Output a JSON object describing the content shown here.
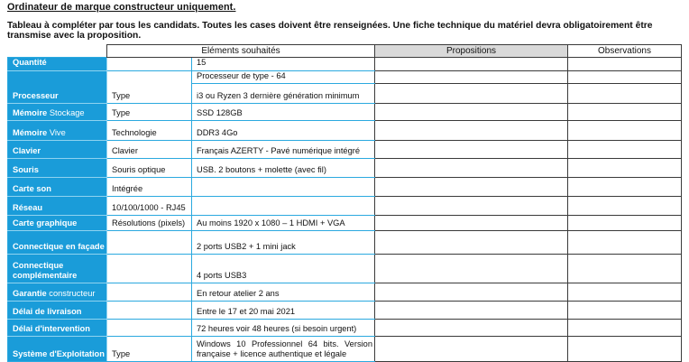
{
  "page": {
    "title": "Ordinateur de marque constructeur uniquement.",
    "intro": "Tableau à compléter par tous les candidats. Toutes les cases doivent être renseignées. Une fiche technique du matériel devra obligatoirement être transmise avec la proposition."
  },
  "colors": {
    "row_label_blue": "#1A9CD9",
    "grid_cyan": "#2BA9DF",
    "grid_dark": "#3A3A3A",
    "header_gray": "#D9D9D9"
  },
  "table": {
    "headers": {
      "elements": "Eléments souhaités",
      "propositions": "Propositions",
      "observations": "Observations"
    },
    "rows": [
      {
        "label": "Quantité",
        "sub": "",
        "cells": [
          {
            "value": "15",
            "proposition": "",
            "observation": ""
          }
        ]
      },
      {
        "label": "Processeur",
        "sub": "Type",
        "cells": [
          {
            "value": "Processeur de type - 64",
            "proposition": "",
            "observation": ""
          },
          {
            "value": "i3 ou Ryzen 3 dernière génération minimum",
            "proposition": "",
            "observation": ""
          }
        ]
      },
      {
        "label": "Mémoire",
        "label_light": "Stockage",
        "sub": "Type",
        "cells": [
          {
            "value": "SSD 128GB",
            "proposition": "",
            "observation": ""
          }
        ]
      },
      {
        "label": "Mémoire",
        "label_light": "Vive",
        "sub": "Technologie",
        "cells": [
          {
            "value": "DDR3 4Go",
            "proposition": "",
            "observation": ""
          }
        ]
      },
      {
        "label": "Clavier",
        "sub": "Clavier",
        "cells": [
          {
            "value": "Français AZERTY - Pavé numérique intégré",
            "proposition": "",
            "observation": ""
          }
        ]
      },
      {
        "label": "Souris",
        "sub": "Souris optique",
        "cells": [
          {
            "value": "USB. 2 boutons + molette (avec fil)",
            "proposition": "",
            "observation": ""
          }
        ]
      },
      {
        "label": "Carte son",
        "sub": "Intégrée",
        "cells": [
          {
            "value": "",
            "proposition": "",
            "observation": ""
          }
        ]
      },
      {
        "label": "Réseau",
        "sub": "10/100/1000 - RJ45",
        "cells": [
          {
            "value": "",
            "proposition": "",
            "observation": ""
          }
        ]
      },
      {
        "label": "Carte graphique",
        "sub": "Résolutions (pixels)",
        "cells": [
          {
            "value": "Au moins 1920 x 1080 – 1 HDMI + VGA",
            "proposition": "",
            "observation": ""
          }
        ]
      },
      {
        "label": "Connectique en façade",
        "sub": "",
        "cells": [
          {
            "value": "2 ports USB2 + 1 mini jack",
            "proposition": "",
            "observation": ""
          }
        ]
      },
      {
        "label": "Connectique complémentaire",
        "sub": "",
        "cells": [
          {
            "value": "4 ports USB3",
            "proposition": "",
            "observation": ""
          }
        ]
      },
      {
        "label": "Garantie",
        "label_light": "constructeur",
        "sub": "",
        "cells": [
          {
            "value": "En retour atelier 2 ans",
            "proposition": "",
            "observation": ""
          }
        ]
      },
      {
        "label": "Délai de livraison",
        "sub": "",
        "cells": [
          {
            "value": "Entre le 17 et 20 mai 2021",
            "proposition": "",
            "observation": ""
          }
        ]
      },
      {
        "label": "Délai d'intervention",
        "sub": "",
        "cells": [
          {
            "value": "72 heures voir 48 heures (si besoin urgent)",
            "proposition": "",
            "observation": ""
          }
        ]
      },
      {
        "label": "Système d'Exploitation",
        "sub": "Type",
        "cells": [
          {
            "value": "Windows 10 Professionnel 64 bits. Version française + licence authentique et légale",
            "justify": true,
            "proposition": "",
            "observation": ""
          }
        ]
      }
    ]
  }
}
